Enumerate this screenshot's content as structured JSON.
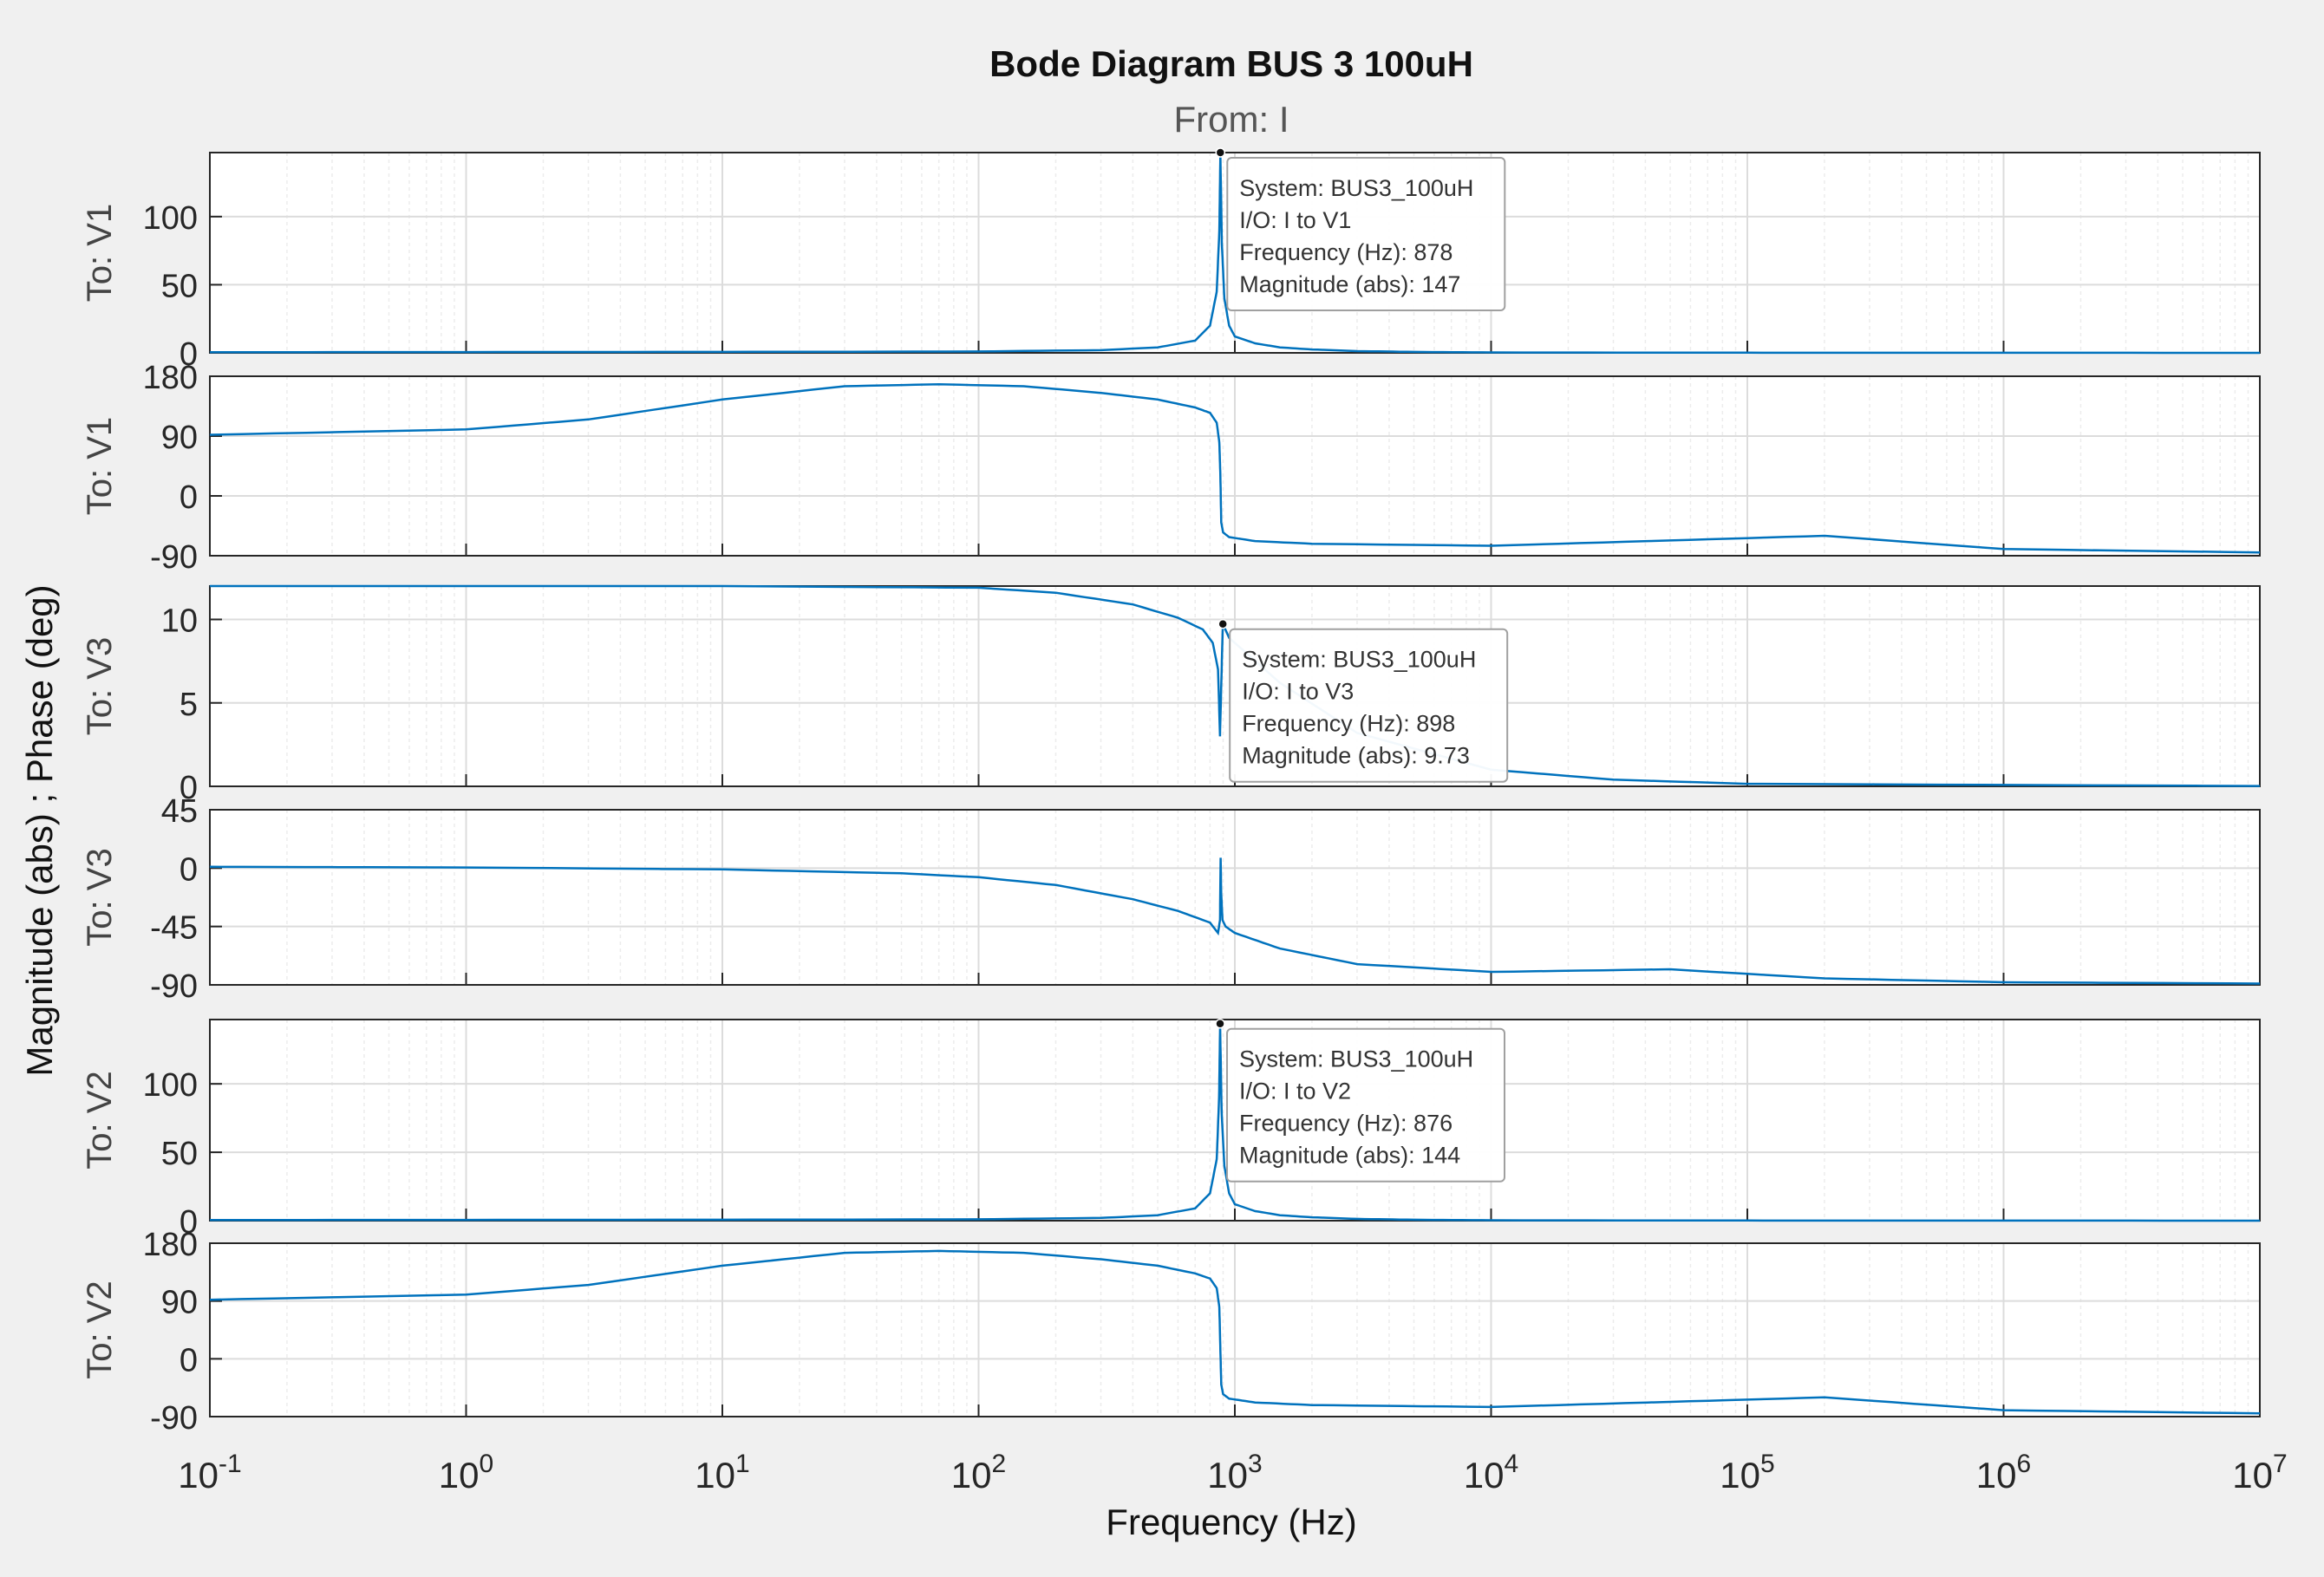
{
  "figure": {
    "title": "Bode Diagram BUS 3 100uH",
    "subtitle": "From: I",
    "ylabel": "Magnitude (abs) ; Phase (deg)",
    "xlabel": "Frequency  (Hz)"
  },
  "colors": {
    "background": "#f0f0f0",
    "axes": "#ffffff",
    "line": "#0072bd",
    "grid": "#dcdcdc"
  },
  "chart_data": {
    "type": "line",
    "xscale": "log",
    "xlim": [
      0.1,
      10000000
    ],
    "x_ticks": [
      {
        "value": 0.1,
        "base": "10",
        "exp": "-1"
      },
      {
        "value": 1,
        "base": "10",
        "exp": "0"
      },
      {
        "value": 10,
        "base": "10",
        "exp": "1"
      },
      {
        "value": 100,
        "base": "10",
        "exp": "2"
      },
      {
        "value": 1000,
        "base": "10",
        "exp": "3"
      },
      {
        "value": 10000,
        "base": "10",
        "exp": "4"
      },
      {
        "value": 100000,
        "base": "10",
        "exp": "5"
      },
      {
        "value": 1000000,
        "base": "10",
        "exp": "6"
      },
      {
        "value": 10000000,
        "base": "10",
        "exp": "7"
      }
    ],
    "grid": true,
    "panels": [
      {
        "ylabel": "To: V1",
        "kind": "magnitude",
        "ylim": [
          0,
          147
        ],
        "yticks": [
          {
            "value": 0,
            "label": "0"
          },
          {
            "value": 50,
            "label": "50"
          },
          {
            "value": 100,
            "label": "100"
          }
        ],
        "series": {
          "x": [
            0.1,
            1,
            10,
            100,
            300,
            500,
            700,
            800,
            850,
            870,
            878,
            890,
            910,
            950,
            1000,
            1200,
            1500,
            2000,
            3000,
            5000,
            10000,
            100000,
            1000000,
            10000000
          ],
          "y": [
            0.5,
            0.6,
            0.7,
            1.0,
            2.0,
            4.0,
            9.0,
            20.0,
            45.0,
            90.0,
            147.0,
            80.0,
            40.0,
            20.0,
            12.0,
            7.0,
            4.0,
            2.5,
            1.3,
            0.7,
            0.3,
            0.1,
            0.05,
            0.02
          ]
        },
        "datatip": {
          "x": 878,
          "y": 147,
          "lines": [
            "System: BUS3_100uH",
            "I/O: I to V1",
            "Frequency (Hz): 878",
            "Magnitude (abs): 147"
          ]
        }
      },
      {
        "ylabel": "To: V1",
        "kind": "phase",
        "ylim": [
          -90,
          180
        ],
        "yticks": [
          {
            "value": -90,
            "label": "-90"
          },
          {
            "value": 0,
            "label": "0"
          },
          {
            "value": 90,
            "label": "90"
          },
          {
            "value": 180,
            "label": "180"
          }
        ],
        "series": {
          "x": [
            0.1,
            1,
            3,
            10,
            30,
            70,
            150,
            300,
            500,
            700,
            800,
            850,
            870,
            878,
            885,
            900,
            950,
            1200,
            2000,
            10000,
            50000,
            200000,
            1000000,
            10000000
          ],
          "y": [
            92,
            100,
            115,
            145,
            165,
            168,
            165,
            155,
            145,
            133,
            125,
            110,
            80,
            30,
            -40,
            -55,
            -62,
            -68,
            -72,
            -75,
            -67,
            -60,
            -80,
            -85
          ]
        }
      },
      {
        "ylabel": "To: V3",
        "kind": "magnitude",
        "ylim": [
          0,
          12
        ],
        "yticks": [
          {
            "value": 0,
            "label": "0"
          },
          {
            "value": 5,
            "label": "5"
          },
          {
            "value": 10,
            "label": "10"
          }
        ],
        "series": {
          "x": [
            0.1,
            1,
            10,
            100,
            200,
            400,
            600,
            750,
            820,
            860,
            875,
            885,
            895,
            898,
            950,
            1500,
            3000,
            10000,
            30000,
            100000,
            10000000
          ],
          "y": [
            12.0,
            12.0,
            12.0,
            11.9,
            11.6,
            10.9,
            10.1,
            9.4,
            8.6,
            7.0,
            3.0,
            6.0,
            9.0,
            9.73,
            8.9,
            6.2,
            3.2,
            1.0,
            0.4,
            0.15,
            0.02
          ]
        },
        "datatip": {
          "x": 898,
          "y": 9.73,
          "lines": [
            "System: BUS3_100uH",
            "I/O: I to V3",
            "Frequency (Hz): 898",
            "Magnitude (abs): 9.73"
          ]
        }
      },
      {
        "ylabel": "To: V3",
        "kind": "phase",
        "ylim": [
          -90,
          45
        ],
        "yticks": [
          {
            "value": -90,
            "label": "-90"
          },
          {
            "value": -45,
            "label": "-45"
          },
          {
            "value": 0,
            "label": "0"
          },
          {
            "value": 45,
            "label": "45"
          }
        ],
        "series": {
          "x": [
            0.1,
            1,
            10,
            50,
            100,
            200,
            400,
            600,
            800,
            860,
            875,
            880,
            885,
            895,
            920,
            1000,
            1500,
            3000,
            10000,
            50000,
            200000,
            1000000,
            10000000
          ],
          "y": [
            1,
            0.5,
            -1,
            -4,
            -7,
            -13,
            -24,
            -33,
            -42,
            -50,
            -40,
            8,
            -20,
            -40,
            -45,
            -50,
            -62,
            -74,
            -80,
            -78,
            -85,
            -88,
            -89
          ]
        }
      },
      {
        "ylabel": "To: V2",
        "kind": "magnitude",
        "ylim": [
          0,
          147
        ],
        "yticks": [
          {
            "value": 0,
            "label": "0"
          },
          {
            "value": 50,
            "label": "50"
          },
          {
            "value": 100,
            "label": "100"
          }
        ],
        "series": {
          "x": [
            0.1,
            1,
            10,
            100,
            300,
            500,
            700,
            800,
            850,
            868,
            876,
            888,
            910,
            950,
            1000,
            1200,
            1500,
            2000,
            3000,
            5000,
            10000,
            100000,
            1000000,
            10000000
          ],
          "y": [
            0.5,
            0.6,
            0.7,
            1.0,
            2.0,
            4.0,
            9.0,
            20.0,
            45.0,
            90.0,
            144.0,
            80.0,
            40.0,
            20.0,
            12.0,
            7.0,
            4.0,
            2.5,
            1.3,
            0.7,
            0.3,
            0.1,
            0.05,
            0.02
          ]
        },
        "datatip": {
          "x": 876,
          "y": 144,
          "lines": [
            "System: BUS3_100uH",
            "I/O: I to V2",
            "Frequency (Hz): 876",
            "Magnitude (abs): 144"
          ]
        }
      },
      {
        "ylabel": "To: V2",
        "kind": "phase",
        "ylim": [
          -90,
          180
        ],
        "yticks": [
          {
            "value": -90,
            "label": "-90"
          },
          {
            "value": 0,
            "label": "0"
          },
          {
            "value": 90,
            "label": "90"
          },
          {
            "value": 180,
            "label": "180"
          }
        ],
        "series": {
          "x": [
            0.1,
            1,
            3,
            10,
            30,
            70,
            150,
            300,
            500,
            700,
            800,
            850,
            870,
            876,
            885,
            900,
            950,
            1200,
            2000,
            10000,
            50000,
            200000,
            1000000,
            10000000
          ],
          "y": [
            92,
            100,
            115,
            145,
            165,
            168,
            165,
            155,
            145,
            133,
            125,
            110,
            80,
            30,
            -40,
            -55,
            -62,
            -68,
            -72,
            -75,
            -67,
            -60,
            -80,
            -85
          ]
        }
      }
    ]
  }
}
